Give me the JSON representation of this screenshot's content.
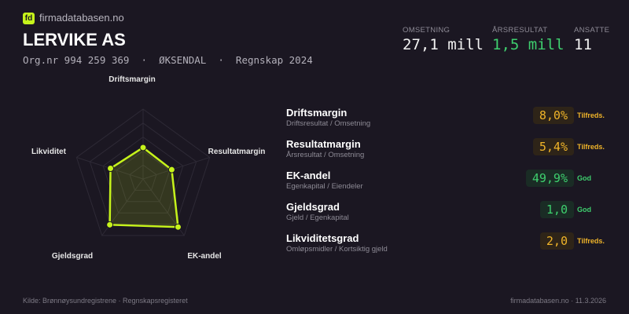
{
  "brand": {
    "logo": "fd",
    "name": "firmadatabasen.no"
  },
  "company": {
    "name": "LERVIKE AS",
    "subtitle": "Org.nr 994 259 369  ·  ØKSENDAL  ·  Regnskap 2024"
  },
  "kpis": [
    {
      "label": "OMSETNING",
      "value": "27,1 mill",
      "color": "#f2f2f2"
    },
    {
      "label": "ÅRSRESULTAT",
      "value": "1,5 mill",
      "color": "#3ecf6e"
    },
    {
      "label": "ANSATTE",
      "value": "11",
      "color": "#f2f2f2"
    }
  ],
  "chart_data": {
    "type": "radar",
    "axes": [
      "Driftsmargin",
      "Resultatmargin",
      "EK-andel",
      "Gjeldsgrad",
      "Likviditet"
    ],
    "values": [
      0.45,
      0.43,
      0.85,
      0.81,
      0.49
    ],
    "range": [
      0,
      1
    ],
    "rings": 5,
    "color": "#c6f31b"
  },
  "metrics": [
    {
      "name": "Driftsmargin",
      "desc": "Driftsresultat / Omsetning",
      "value": "8,0%",
      "status": "Tilfreds.",
      "tone": "warn"
    },
    {
      "name": "Resultatmargin",
      "desc": "Årsresultat / Omsetning",
      "value": "5,4%",
      "status": "Tilfreds.",
      "tone": "warn"
    },
    {
      "name": "EK-andel",
      "desc": "Egenkapital / Eiendeler",
      "value": "49,9%",
      "status": "God",
      "tone": "good"
    },
    {
      "name": "Gjeldsgrad",
      "desc": "Gjeld / Egenkapital",
      "value": "1,0",
      "status": "God",
      "tone": "good"
    },
    {
      "name": "Likviditetsgrad",
      "desc": "Omløpsmidler / Kortsiktig gjeld",
      "value": "2,0",
      "status": "Tilfreds.",
      "tone": "warn"
    }
  ],
  "tones": {
    "warn": {
      "fg": "#f0b429",
      "bg": "#2e2418"
    },
    "good": {
      "fg": "#3ecf6e",
      "bg": "#1a2c25"
    }
  },
  "footer": {
    "source": "Kilde: Brønnøysundregistrene · Regnskapsregisteret",
    "right": "firmadatabasen.no · 11.3.2026"
  }
}
